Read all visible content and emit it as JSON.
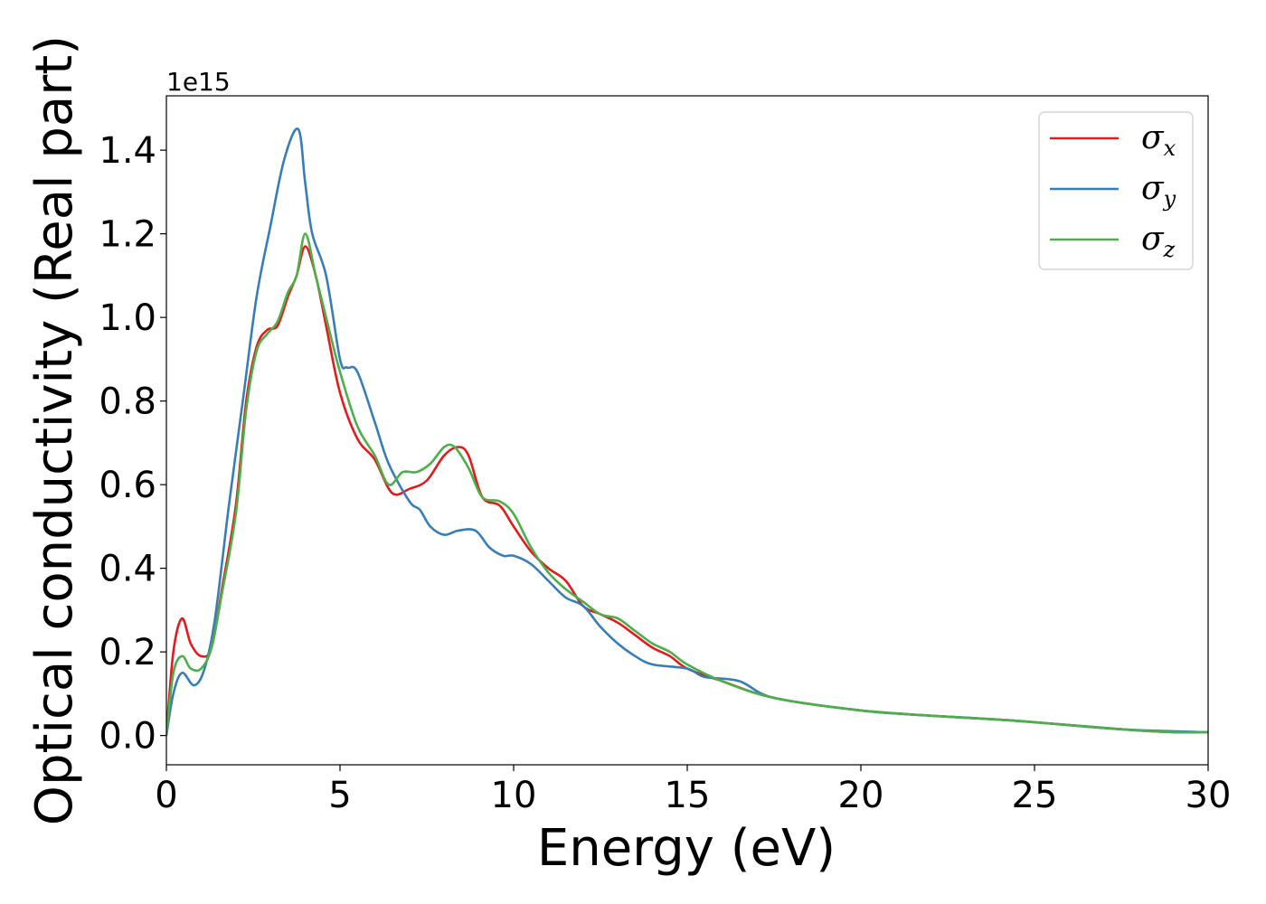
{
  "chart_data": {
    "type": "line",
    "xlabel": "Energy (eV)",
    "ylabel": "Optical conductivity (Real part)",
    "y_offset_label": "1e15",
    "xlim": [
      0,
      30
    ],
    "ylim": [
      -0.07,
      1.53
    ],
    "x_ticks": [
      0,
      5,
      10,
      15,
      20,
      25,
      30
    ],
    "x_tick_labels": [
      "0",
      "5",
      "10",
      "15",
      "20",
      "25",
      "30"
    ],
    "y_ticks": [
      0.0,
      0.2,
      0.4,
      0.6,
      0.8,
      1.0,
      1.2,
      1.4
    ],
    "y_tick_labels": [
      "0.0",
      "0.2",
      "0.4",
      "0.6",
      "0.8",
      "1.0",
      "1.2",
      "1.4"
    ],
    "grid": false,
    "legend": "top-right",
    "series": [
      {
        "name": "σx",
        "name_base": "σ",
        "name_sub": "x",
        "color": "#e41a1c",
        "x": [
          0,
          0.2,
          0.45,
          0.7,
          1.0,
          1.3,
          1.6,
          2.0,
          2.3,
          2.6,
          2.9,
          3.2,
          3.5,
          3.75,
          4.0,
          4.3,
          4.6,
          5.0,
          5.5,
          6.0,
          6.5,
          7.0,
          7.5,
          8.0,
          8.4,
          8.7,
          9.1,
          9.6,
          10.0,
          10.5,
          11.0,
          11.5,
          12.0,
          12.5,
          13.0,
          13.5,
          14.0,
          14.5,
          15.0,
          16.0,
          17.5,
          20.0,
          22.5,
          24.5,
          27.5,
          29.0,
          30.0
        ],
        "y": [
          0.0,
          0.2,
          0.28,
          0.22,
          0.19,
          0.21,
          0.35,
          0.55,
          0.8,
          0.93,
          0.97,
          0.98,
          1.05,
          1.1,
          1.17,
          1.1,
          0.98,
          0.82,
          0.71,
          0.66,
          0.58,
          0.59,
          0.61,
          0.67,
          0.69,
          0.67,
          0.57,
          0.55,
          0.5,
          0.44,
          0.4,
          0.37,
          0.31,
          0.29,
          0.27,
          0.24,
          0.21,
          0.19,
          0.16,
          0.13,
          0.09,
          0.06,
          0.045,
          0.035,
          0.015,
          0.008,
          0.008
        ]
      },
      {
        "name": "σy",
        "name_base": "σ",
        "name_sub": "y",
        "color": "#377eb8",
        "x": [
          0,
          0.2,
          0.45,
          0.8,
          1.1,
          1.4,
          1.8,
          2.2,
          2.6,
          3.0,
          3.4,
          3.8,
          4.0,
          4.2,
          4.6,
          5.0,
          5.2,
          5.5,
          6.0,
          6.4,
          7.0,
          7.3,
          7.6,
          8.0,
          8.4,
          8.9,
          9.3,
          9.7,
          10.0,
          10.5,
          11.0,
          11.5,
          12.0,
          12.5,
          13.0,
          13.5,
          14.0,
          15.0,
          15.5,
          16.5,
          17.5,
          20.0,
          21.5,
          24.5,
          27.5,
          30.0
        ],
        "y": [
          0.0,
          0.1,
          0.15,
          0.12,
          0.16,
          0.28,
          0.55,
          0.8,
          1.05,
          1.22,
          1.38,
          1.45,
          1.32,
          1.2,
          1.1,
          0.9,
          0.88,
          0.87,
          0.75,
          0.65,
          0.56,
          0.54,
          0.5,
          0.48,
          0.49,
          0.49,
          0.45,
          0.43,
          0.43,
          0.41,
          0.37,
          0.33,
          0.31,
          0.26,
          0.22,
          0.19,
          0.17,
          0.16,
          0.14,
          0.13,
          0.09,
          0.06,
          0.05,
          0.035,
          0.015,
          0.008
        ]
      },
      {
        "name": "σz",
        "name_base": "σ",
        "name_sub": "z",
        "color": "#4daf4a",
        "x": [
          0,
          0.2,
          0.45,
          0.7,
          1.0,
          1.3,
          1.6,
          2.0,
          2.3,
          2.6,
          2.9,
          3.2,
          3.5,
          3.75,
          4.0,
          4.3,
          4.6,
          5.0,
          5.5,
          6.0,
          6.4,
          6.8,
          7.2,
          7.6,
          8.0,
          8.3,
          8.7,
          9.1,
          9.6,
          10.0,
          10.5,
          11.0,
          11.5,
          12.0,
          12.5,
          13.0,
          13.5,
          14.0,
          14.5,
          15.0,
          16.0,
          17.5,
          20.0,
          22.5,
          24.5,
          27.5,
          29.0,
          30.0
        ],
        "y": [
          0.0,
          0.15,
          0.19,
          0.16,
          0.16,
          0.21,
          0.34,
          0.53,
          0.78,
          0.92,
          0.96,
          0.99,
          1.06,
          1.1,
          1.2,
          1.1,
          1.0,
          0.87,
          0.74,
          0.67,
          0.6,
          0.63,
          0.63,
          0.65,
          0.69,
          0.69,
          0.64,
          0.57,
          0.56,
          0.53,
          0.45,
          0.39,
          0.35,
          0.32,
          0.29,
          0.28,
          0.25,
          0.22,
          0.2,
          0.17,
          0.13,
          0.09,
          0.06,
          0.045,
          0.035,
          0.015,
          0.008,
          0.008
        ]
      }
    ]
  }
}
